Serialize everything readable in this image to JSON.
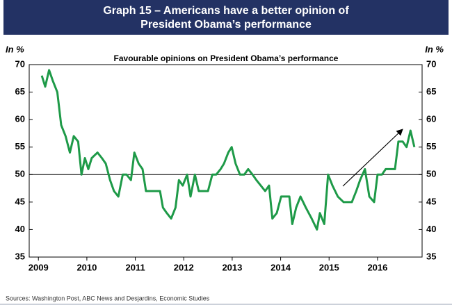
{
  "chart_data": {
    "type": "line",
    "title": [
      "Graph 15 – Americans have a better opinion of",
      "President Obama’s performance"
    ],
    "subtitle": "Favourable opinions on President Obama’s performance",
    "y_label": "In %",
    "y2_label": "In %",
    "source": "Sources: Washington Post, ABC News and Desjardins, Economic Studies",
    "x": [
      2009.07,
      2009.14,
      2009.22,
      2009.3,
      2009.39,
      2009.47,
      2009.56,
      2009.65,
      2009.73,
      2009.82,
      2009.89,
      2009.96,
      2010.03,
      2010.1,
      2010.22,
      2010.31,
      2010.39,
      2010.48,
      2010.56,
      2010.65,
      2010.74,
      2010.82,
      2010.91,
      2010.98,
      2011.07,
      2011.15,
      2011.22,
      2011.32,
      2011.42,
      2011.51,
      2011.57,
      2011.65,
      2011.74,
      2011.83,
      2011.9,
      2011.98,
      2012.07,
      2012.14,
      2012.23,
      2012.31,
      2012.41,
      2012.5,
      2012.59,
      2012.67,
      2012.76,
      2012.83,
      2012.92,
      2012.99,
      2013.07,
      2013.16,
      2013.25,
      2013.33,
      2013.42,
      2013.5,
      2013.59,
      2013.68,
      2013.76,
      2013.83,
      2013.92,
      2014.01,
      2014.09,
      2014.18,
      2014.24,
      2014.32,
      2014.41,
      2014.52,
      2014.64,
      2014.75,
      2014.81,
      2014.9,
      2014.98,
      2015.07,
      2015.18,
      2015.3,
      2015.38,
      2015.47,
      2015.56,
      2015.64,
      2015.74,
      2015.83,
      2015.93,
      2016.0,
      2016.09,
      2016.17,
      2016.27,
      2016.36,
      2016.43,
      2016.52,
      2016.6,
      2016.68,
      2016.76
    ],
    "series": [
      {
        "name": "Favourable opinions",
        "color": "#1e9a48",
        "values": [
          68,
          66,
          69,
          67,
          65,
          59,
          57,
          54,
          57,
          56,
          50,
          53,
          51,
          53,
          54,
          53,
          52,
          49,
          47,
          46,
          50,
          50,
          49,
          54,
          52,
          51,
          47,
          47,
          47,
          47,
          44,
          43,
          42,
          44,
          49,
          48,
          50,
          46,
          50,
          47,
          47,
          47,
          50,
          50,
          51,
          52,
          54,
          55,
          52,
          50,
          50,
          51,
          50,
          49,
          48,
          47,
          48,
          42,
          43,
          46,
          46,
          46,
          41,
          44,
          46,
          44,
          42,
          40,
          43,
          41,
          50,
          48,
          46,
          45,
          45,
          45,
          47,
          49,
          51,
          46,
          45,
          50,
          50,
          51,
          51,
          51,
          56,
          56,
          55,
          58,
          55
        ]
      }
    ],
    "xlim": [
      2008.81,
      2016.92
    ],
    "xticks": [
      2009,
      2010,
      2011,
      2012,
      2013,
      2014,
      2015,
      2016
    ],
    "ylim": [
      35,
      70
    ],
    "yticks": [
      35,
      40,
      45,
      50,
      55,
      60,
      65,
      70
    ],
    "y2lim": [
      35,
      70
    ],
    "y2ticks": [
      35,
      40,
      45,
      50,
      55,
      60,
      65,
      70
    ],
    "reference_line": 50
  }
}
